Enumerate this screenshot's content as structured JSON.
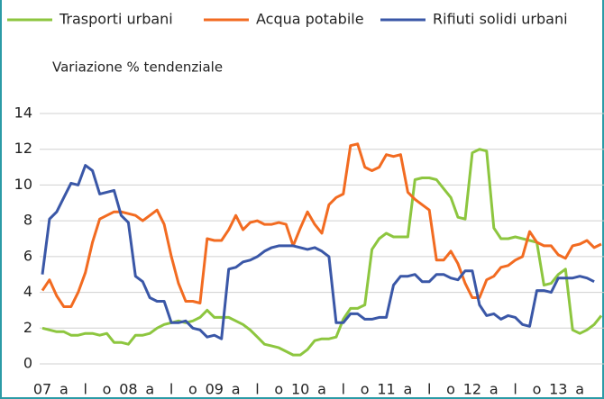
{
  "chart_data": {
    "type": "line",
    "subtitle": "Variazione % tendenziale",
    "categories": [
      "07",
      null,
      null,
      "a",
      null,
      null,
      "l",
      null,
      null,
      "o",
      null,
      null,
      "08",
      null,
      null,
      "a",
      null,
      null,
      "l",
      null,
      null,
      "o",
      null,
      null,
      "09",
      null,
      null,
      "a",
      null,
      null,
      "l",
      null,
      null,
      "o",
      null,
      null,
      "10",
      null,
      null,
      "a",
      null,
      null,
      "l",
      null,
      null,
      "o",
      null,
      null,
      "11",
      null,
      null,
      "a",
      null,
      null,
      "l",
      null,
      null,
      "o",
      null,
      null,
      "12",
      null,
      null,
      "a",
      null,
      null,
      "l",
      null,
      null,
      "o",
      null,
      null,
      "13",
      null,
      null,
      "a",
      null,
      null,
      null
    ],
    "series": [
      {
        "name": "Trasporti urbani",
        "color": "#8dc63f",
        "values": [
          2.0,
          1.9,
          1.8,
          1.8,
          1.6,
          1.6,
          1.7,
          1.7,
          1.6,
          1.7,
          1.2,
          1.2,
          1.1,
          1.6,
          1.6,
          1.7,
          2.0,
          2.2,
          2.3,
          2.4,
          2.3,
          2.4,
          2.6,
          3.0,
          2.6,
          2.6,
          2.6,
          2.4,
          2.2,
          1.9,
          1.5,
          1.1,
          1.0,
          0.9,
          0.7,
          0.5,
          0.5,
          0.8,
          1.3,
          1.4,
          1.4,
          1.5,
          2.5,
          3.1,
          3.1,
          3.3,
          6.4,
          7.0,
          7.3,
          7.1,
          7.1,
          7.1,
          10.3,
          10.4,
          10.4,
          10.3,
          9.8,
          9.3,
          8.2,
          8.1,
          11.8,
          12.0,
          11.9,
          7.6,
          7.0,
          7.0,
          7.1,
          7.0,
          6.9,
          6.8,
          4.4,
          4.5,
          5.0,
          5.3,
          1.9,
          1.7,
          1.9,
          2.2,
          2.7
        ]
      },
      {
        "name": "Acqua potabile",
        "color": "#f26b21",
        "values": [
          4.1,
          4.7,
          3.8,
          3.2,
          3.2,
          4.0,
          5.1,
          6.8,
          8.1,
          8.3,
          8.5,
          8.5,
          8.4,
          8.3,
          8.0,
          8.3,
          8.6,
          7.8,
          6.0,
          4.5,
          3.5,
          3.5,
          3.4,
          7.0,
          6.9,
          6.9,
          7.5,
          8.3,
          7.5,
          7.9,
          8.0,
          7.8,
          7.8,
          7.9,
          7.8,
          6.6,
          7.6,
          8.5,
          7.8,
          7.3,
          8.9,
          9.3,
          9.5,
          12.2,
          12.3,
          11.0,
          10.8,
          11.0,
          11.7,
          11.6,
          11.7,
          9.6,
          9.2,
          8.9,
          8.6,
          5.8,
          5.8,
          6.3,
          5.6,
          4.5,
          3.7,
          3.7,
          4.7,
          4.9,
          5.4,
          5.5,
          5.8,
          6.0,
          7.4,
          6.8,
          6.6,
          6.6,
          6.1,
          5.9,
          6.6,
          6.7,
          6.9,
          6.5,
          6.7
        ]
      },
      {
        "name": "Rifiuti solidi urbani",
        "color": "#3a57a7",
        "values": [
          5.0,
          8.1,
          8.5,
          9.3,
          10.1,
          10.0,
          11.1,
          10.8,
          9.5,
          9.6,
          9.7,
          8.3,
          7.9,
          4.9,
          4.6,
          3.7,
          3.5,
          3.5,
          2.3,
          2.3,
          2.4,
          2.0,
          1.9,
          1.5,
          1.6,
          1.4,
          5.3,
          5.4,
          5.7,
          5.8,
          6.0,
          6.3,
          6.5,
          6.6,
          6.6,
          6.6,
          6.5,
          6.4,
          6.5,
          6.3,
          6.0,
          2.3,
          2.3,
          2.8,
          2.8,
          2.5,
          2.5,
          2.6,
          2.6,
          4.4,
          4.9,
          4.9,
          5.0,
          4.6,
          4.6,
          5.0,
          5.0,
          4.8,
          4.7,
          5.2,
          5.2,
          3.3,
          2.7,
          2.8,
          2.5,
          2.7,
          2.6,
          2.2,
          2.1,
          4.1,
          4.1,
          4.0,
          4.8,
          4.8,
          4.8,
          4.9,
          4.8,
          4.6,
          null
        ]
      }
    ],
    "ylim": [
      0,
      14
    ],
    "yticks": [
      0,
      2,
      4,
      6,
      8,
      10,
      12,
      14
    ],
    "grid": true
  }
}
